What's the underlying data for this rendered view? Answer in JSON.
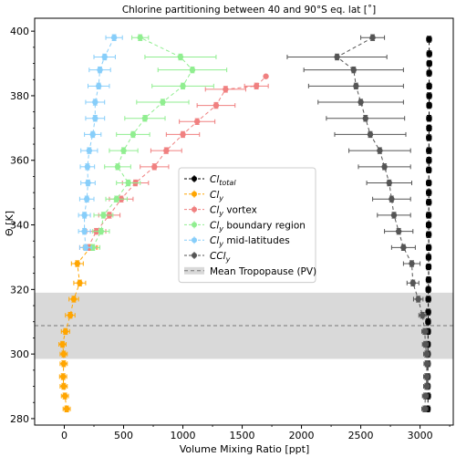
{
  "chart_data": {
    "type": "scatter",
    "title": "Chlorine partitioning between 40 and 90°S eq. lat [$^\\circ$]",
    "title_display": "Chlorine partitioning between 40 and 90°S eq. lat [˚]",
    "xlabel": "Volume Mixing Ratio [ppt]",
    "ylabel": "Θ [K]",
    "xlim": [
      -250,
      3280
    ],
    "ylim": [
      278,
      404
    ],
    "xticks": [
      0,
      500,
      1000,
      1500,
      2000,
      2500,
      3000
    ],
    "yticks": [
      280,
      300,
      320,
      340,
      360,
      380,
      400
    ],
    "tropopause_band": [
      298.5,
      319
    ],
    "tropopause_mean": 308.8,
    "legend_position": "center",
    "legend": [
      {
        "key": "cl_total",
        "label_main": "Cl",
        "label_sub": "total",
        "style": "marker"
      },
      {
        "key": "cly",
        "label_main": "Cl",
        "label_sub": "y",
        "label_rest": "",
        "style": "marker"
      },
      {
        "key": "cly_vortex",
        "label_main": "Cl",
        "label_sub": "y",
        "label_rest": " vortex",
        "style": "marker"
      },
      {
        "key": "cly_boundary",
        "label_main": "Cl",
        "label_sub": "y",
        "label_rest": " boundary region",
        "style": "marker"
      },
      {
        "key": "cly_midlat",
        "label_main": "Cl",
        "label_sub": "y",
        "label_rest": " mid-latitudes",
        "style": "marker"
      },
      {
        "key": "ccly",
        "label_main": "CCl",
        "label_sub": "y",
        "label_rest": "",
        "style": "marker"
      },
      {
        "key": "tropopause",
        "label": "Mean Tropopause (PV)",
        "style": "band"
      }
    ],
    "series": [
      {
        "key": "cl_total",
        "name": "Cl_total",
        "color": "#000000",
        "points": [
          {
            "x": 3065,
            "y": 283,
            "xerr": 20,
            "yerr": 0.9
          },
          {
            "x": 3068,
            "y": 287,
            "xerr": 20,
            "yerr": 0.9
          },
          {
            "x": 3065,
            "y": 290,
            "xerr": 20,
            "yerr": 0.9
          },
          {
            "x": 3065,
            "y": 293,
            "xerr": 20,
            "yerr": 0.9
          },
          {
            "x": 3066,
            "y": 297,
            "xerr": 20,
            "yerr": 0.9
          },
          {
            "x": 3066,
            "y": 300,
            "xerr": 20,
            "yerr": 0.9
          },
          {
            "x": 3066,
            "y": 303,
            "xerr": 20,
            "yerr": 0.9
          },
          {
            "x": 3068,
            "y": 307,
            "xerr": 20,
            "yerr": 0.9
          },
          {
            "x": 3068,
            "y": 310,
            "xerr": 20,
            "yerr": 0.9
          },
          {
            "x": 3069,
            "y": 313,
            "xerr": 20,
            "yerr": 0.9
          },
          {
            "x": 3070,
            "y": 317,
            "xerr": 20,
            "yerr": 0.9
          },
          {
            "x": 3070,
            "y": 320,
            "xerr": 20,
            "yerr": 0.9
          },
          {
            "x": 3072,
            "y": 323,
            "xerr": 20,
            "yerr": 0.9
          },
          {
            "x": 3072,
            "y": 327,
            "xerr": 20,
            "yerr": 0.9
          },
          {
            "x": 3072,
            "y": 330,
            "xerr": 20,
            "yerr": 0.9
          },
          {
            "x": 3073,
            "y": 333,
            "xerr": 20,
            "yerr": 0.9
          },
          {
            "x": 3073,
            "y": 337,
            "xerr": 20,
            "yerr": 0.9
          },
          {
            "x": 3073,
            "y": 340,
            "xerr": 20,
            "yerr": 0.9
          },
          {
            "x": 3073,
            "y": 343,
            "xerr": 20,
            "yerr": 0.9
          },
          {
            "x": 3074,
            "y": 347,
            "xerr": 20,
            "yerr": 0.9
          },
          {
            "x": 3074,
            "y": 350,
            "xerr": 20,
            "yerr": 0.9
          },
          {
            "x": 3074,
            "y": 353,
            "xerr": 20,
            "yerr": 0.9
          },
          {
            "x": 3074,
            "y": 357,
            "xerr": 20,
            "yerr": 0.9
          },
          {
            "x": 3075,
            "y": 360,
            "xerr": 20,
            "yerr": 0.9
          },
          {
            "x": 3075,
            "y": 363,
            "xerr": 20,
            "yerr": 0.9
          },
          {
            "x": 3075,
            "y": 367,
            "xerr": 20,
            "yerr": 0.9
          },
          {
            "x": 3076,
            "y": 370,
            "xerr": 20,
            "yerr": 0.9
          },
          {
            "x": 3076,
            "y": 373,
            "xerr": 20,
            "yerr": 0.9
          },
          {
            "x": 3077,
            "y": 377,
            "xerr": 20,
            "yerr": 0.9
          },
          {
            "x": 3077,
            "y": 380,
            "xerr": 20,
            "yerr": 0.9
          },
          {
            "x": 3077,
            "y": 383,
            "xerr": 20,
            "yerr": 0.9
          },
          {
            "x": 3077,
            "y": 387,
            "xerr": 20,
            "yerr": 0.9
          },
          {
            "x": 3078,
            "y": 390,
            "xerr": 20,
            "yerr": 0.9
          },
          {
            "x": 3078,
            "y": 393,
            "xerr": 20,
            "yerr": 0.9
          },
          {
            "x": 3076,
            "y": 397.5,
            "xerr": 20,
            "yerr": 0.9
          }
        ]
      },
      {
        "key": "cly",
        "name": "Cl_y",
        "color": "#ffa500",
        "points": [
          {
            "x": 20,
            "y": 283,
            "xerr": 30,
            "yerr": 0.9
          },
          {
            "x": 5,
            "y": 287,
            "xerr": 30,
            "yerr": 0.9
          },
          {
            "x": -5,
            "y": 290,
            "xerr": 30,
            "yerr": 0.9
          },
          {
            "x": -10,
            "y": 293,
            "xerr": 30,
            "yerr": 0.9
          },
          {
            "x": -5,
            "y": 297,
            "xerr": 30,
            "yerr": 0.9
          },
          {
            "x": -5,
            "y": 300,
            "xerr": 30,
            "yerr": 0.9
          },
          {
            "x": -15,
            "y": 303,
            "xerr": 30,
            "yerr": 0.9
          },
          {
            "x": 10,
            "y": 307,
            "xerr": 35,
            "yerr": 0.9
          },
          {
            "x": 50,
            "y": 312,
            "xerr": 40,
            "yerr": 0.9
          },
          {
            "x": 80,
            "y": 317,
            "xerr": 40,
            "yerr": 0.9
          },
          {
            "x": 130,
            "y": 322,
            "xerr": 50,
            "yerr": 0.9
          },
          {
            "x": 110,
            "y": 328,
            "xerr": 50,
            "yerr": 0.9
          },
          {
            "x": 220,
            "y": 333,
            "xerr": 60,
            "yerr": 0.9
          }
        ]
      },
      {
        "key": "cly_vortex",
        "name": "Cl_y vortex",
        "color": "#f08080",
        "points": [
          {
            "x": 200,
            "y": 333,
            "xerr": 70,
            "yerr": 0.9
          },
          {
            "x": 270,
            "y": 338,
            "xerr": 80,
            "yerr": 0.9
          },
          {
            "x": 380,
            "y": 343,
            "xerr": 90,
            "yerr": 0.9
          },
          {
            "x": 480,
            "y": 348,
            "xerr": 100,
            "yerr": 0.9
          },
          {
            "x": 600,
            "y": 353,
            "xerr": 110,
            "yerr": 0.9
          },
          {
            "x": 760,
            "y": 358,
            "xerr": 120,
            "yerr": 0.9
          },
          {
            "x": 860,
            "y": 363,
            "xerr": 130,
            "yerr": 0.9
          },
          {
            "x": 1000,
            "y": 368,
            "xerr": 140,
            "yerr": 0.9
          },
          {
            "x": 1120,
            "y": 372,
            "xerr": 150,
            "yerr": 0.9
          },
          {
            "x": 1280,
            "y": 377,
            "xerr": 160,
            "yerr": 0.9
          },
          {
            "x": 1360,
            "y": 382,
            "xerr": 170,
            "yerr": 0.9
          },
          {
            "x": 1620,
            "y": 383,
            "xerr": 100,
            "yerr": 0.9
          },
          {
            "x": 1700,
            "y": 386,
            "xerr": 0,
            "yerr": 0
          }
        ]
      },
      {
        "key": "cly_boundary",
        "name": "Cl_y boundary region",
        "color": "#90ee90",
        "points": [
          {
            "x": 240,
            "y": 333,
            "xerr": 60,
            "yerr": 0.9
          },
          {
            "x": 310,
            "y": 338,
            "xerr": 70,
            "yerr": 0.9
          },
          {
            "x": 330,
            "y": 343,
            "xerr": 80,
            "yerr": 0.9
          },
          {
            "x": 440,
            "y": 348,
            "xerr": 90,
            "yerr": 0.9
          },
          {
            "x": 540,
            "y": 353,
            "xerr": 100,
            "yerr": 0.9
          },
          {
            "x": 450,
            "y": 358,
            "xerr": 110,
            "yerr": 0.9
          },
          {
            "x": 500,
            "y": 363,
            "xerr": 120,
            "yerr": 0.9
          },
          {
            "x": 580,
            "y": 368,
            "xerr": 140,
            "yerr": 0.9
          },
          {
            "x": 680,
            "y": 373,
            "xerr": 170,
            "yerr": 0.9
          },
          {
            "x": 830,
            "y": 378,
            "xerr": 220,
            "yerr": 0.9
          },
          {
            "x": 1000,
            "y": 383,
            "xerr": 260,
            "yerr": 0.9
          },
          {
            "x": 1080,
            "y": 388,
            "xerr": 290,
            "yerr": 0.9
          },
          {
            "x": 980,
            "y": 392,
            "xerr": 300,
            "yerr": 0.9
          },
          {
            "x": 640,
            "y": 398,
            "xerr": 70,
            "yerr": 0.9
          }
        ]
      },
      {
        "key": "cly_midlat",
        "name": "Cl_y mid-latitudes",
        "color": "#87cefa",
        "points": [
          {
            "x": 180,
            "y": 333,
            "xerr": 50,
            "yerr": 0.9
          },
          {
            "x": 170,
            "y": 338,
            "xerr": 50,
            "yerr": 0.9
          },
          {
            "x": 170,
            "y": 343,
            "xerr": 50,
            "yerr": 0.9
          },
          {
            "x": 190,
            "y": 348,
            "xerr": 60,
            "yerr": 0.9
          },
          {
            "x": 200,
            "y": 353,
            "xerr": 60,
            "yerr": 0.9
          },
          {
            "x": 195,
            "y": 358,
            "xerr": 60,
            "yerr": 0.9
          },
          {
            "x": 210,
            "y": 363,
            "xerr": 70,
            "yerr": 0.9
          },
          {
            "x": 240,
            "y": 368,
            "xerr": 70,
            "yerr": 0.9
          },
          {
            "x": 260,
            "y": 373,
            "xerr": 80,
            "yerr": 0.9
          },
          {
            "x": 260,
            "y": 378,
            "xerr": 80,
            "yerr": 0.9
          },
          {
            "x": 290,
            "y": 383,
            "xerr": 90,
            "yerr": 0.9
          },
          {
            "x": 300,
            "y": 388,
            "xerr": 90,
            "yerr": 0.9
          },
          {
            "x": 340,
            "y": 392,
            "xerr": 90,
            "yerr": 0.9
          },
          {
            "x": 420,
            "y": 398,
            "xerr": 70,
            "yerr": 0.9
          }
        ]
      },
      {
        "key": "ccly",
        "name": "CCl_y",
        "color": "#555555",
        "points": [
          {
            "x": 3040,
            "y": 283,
            "xerr": 25,
            "yerr": 0.9
          },
          {
            "x": 3045,
            "y": 287,
            "xerr": 25,
            "yerr": 0.9
          },
          {
            "x": 3055,
            "y": 290,
            "xerr": 25,
            "yerr": 0.9
          },
          {
            "x": 3055,
            "y": 293,
            "xerr": 25,
            "yerr": 0.9
          },
          {
            "x": 3058,
            "y": 297,
            "xerr": 25,
            "yerr": 0.9
          },
          {
            "x": 3055,
            "y": 300,
            "xerr": 25,
            "yerr": 0.9
          },
          {
            "x": 3045,
            "y": 303,
            "xerr": 25,
            "yerr": 0.9
          },
          {
            "x": 3040,
            "y": 307,
            "xerr": 25,
            "yerr": 0.9
          },
          {
            "x": 3020,
            "y": 312,
            "xerr": 30,
            "yerr": 0.9
          },
          {
            "x": 2985,
            "y": 317,
            "xerr": 40,
            "yerr": 0.9
          },
          {
            "x": 2940,
            "y": 322,
            "xerr": 50,
            "yerr": 0.9
          },
          {
            "x": 2930,
            "y": 328,
            "xerr": 70,
            "yerr": 0.9
          },
          {
            "x": 2860,
            "y": 333,
            "xerr": 100,
            "yerr": 0.9
          },
          {
            "x": 2820,
            "y": 338,
            "xerr": 120,
            "yerr": 0.9
          },
          {
            "x": 2780,
            "y": 343,
            "xerr": 140,
            "yerr": 0.9
          },
          {
            "x": 2760,
            "y": 348,
            "xerr": 160,
            "yerr": 0.9
          },
          {
            "x": 2740,
            "y": 353,
            "xerr": 190,
            "yerr": 0.9
          },
          {
            "x": 2700,
            "y": 358,
            "xerr": 220,
            "yerr": 0.9
          },
          {
            "x": 2660,
            "y": 363,
            "xerr": 260,
            "yerr": 0.9
          },
          {
            "x": 2580,
            "y": 368,
            "xerr": 300,
            "yerr": 0.9
          },
          {
            "x": 2540,
            "y": 373,
            "xerr": 330,
            "yerr": 0.9
          },
          {
            "x": 2500,
            "y": 378,
            "xerr": 360,
            "yerr": 0.9
          },
          {
            "x": 2460,
            "y": 383,
            "xerr": 400,
            "yerr": 0.9
          },
          {
            "x": 2440,
            "y": 388,
            "xerr": 420,
            "yerr": 0.9
          },
          {
            "x": 2300,
            "y": 392,
            "xerr": 420,
            "yerr": 0.9
          },
          {
            "x": 2600,
            "y": 398,
            "xerr": 100,
            "yerr": 0.9
          }
        ]
      }
    ]
  }
}
